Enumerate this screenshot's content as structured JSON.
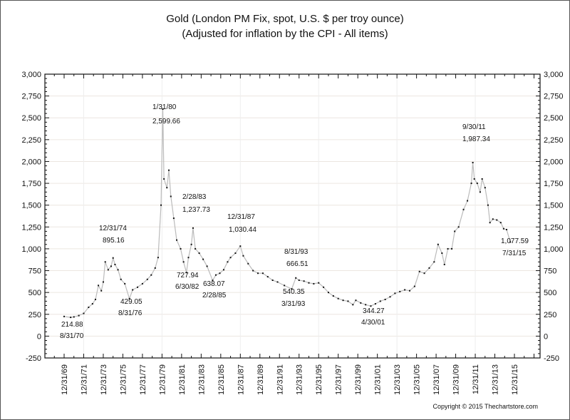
{
  "chart_data": {
    "type": "line",
    "title": "Gold (London PM Fix, spot, U.S. $ per troy ounce)",
    "subtitle": "(Adjusted for inflation by the CPI - All items)",
    "xlabel": "",
    "ylabel": "",
    "ylim": [
      -250,
      3000
    ],
    "xlim": [
      "1968",
      "2018"
    ],
    "grid": true,
    "y_ticks": [
      "-250",
      "0",
      "250",
      "500",
      "750",
      "1,000",
      "1,250",
      "1,500",
      "1,750",
      "2,000",
      "2,250",
      "2,500",
      "2,750",
      "3,000"
    ],
    "y_tick_values": [
      -250,
      0,
      250,
      500,
      750,
      1000,
      1250,
      1500,
      1750,
      2000,
      2250,
      2500,
      2750,
      3000
    ],
    "x_ticks": [
      "12/31/69",
      "12/31/71",
      "12/31/73",
      "12/31/75",
      "12/31/77",
      "12/31/79",
      "12/31/81",
      "12/31/83",
      "12/31/85",
      "12/31/87",
      "12/31/89",
      "12/31/91",
      "12/31/93",
      "12/31/95",
      "12/31/97",
      "12/31/99",
      "12/31/01",
      "12/31/03",
      "12/31/05",
      "12/31/07",
      "12/31/09",
      "12/31/11",
      "12/31/13",
      "12/31/15"
    ],
    "x_tick_years": [
      1970,
      1972,
      1974,
      1976,
      1978,
      1980,
      1982,
      1984,
      1986,
      1988,
      1990,
      1992,
      1994,
      1996,
      1998,
      2000,
      2002,
      2004,
      2006,
      2008,
      2010,
      2012,
      2014,
      2016
    ],
    "line_color": "#bbbbbb",
    "marker_color": "#111111",
    "series": [
      {
        "x": [
          1970.0,
          1970.67,
          1971.0,
          1971.5,
          1972.0,
          1972.5,
          1972.9,
          1973.2,
          1973.5,
          1973.8,
          1974.0,
          1974.2,
          1974.5,
          1974.8,
          1975.0,
          1975.2,
          1975.5,
          1975.8,
          1976.2,
          1976.67,
          1977.0,
          1977.5,
          1978.0,
          1978.5,
          1978.9,
          1979.3,
          1979.6,
          1979.9,
          1980.08,
          1980.2,
          1980.5,
          1980.7,
          1980.9,
          1981.2,
          1981.5,
          1981.9,
          1982.2,
          1982.5,
          1982.7,
          1983.0,
          1983.17,
          1983.4,
          1983.8,
          1984.2,
          1984.6,
          1985.17,
          1985.5,
          1985.9,
          1986.3,
          1986.7,
          1987.0,
          1987.5,
          1988.0,
          1988.3,
          1988.8,
          1989.3,
          1989.8,
          1990.3,
          1990.8,
          1991.3,
          1991.8,
          1992.5,
          1993.25,
          1993.67,
          1994.0,
          1994.5,
          1995.0,
          1995.5,
          1996.0,
          1996.5,
          1997.0,
          1997.5,
          1998.0,
          1998.5,
          1999.0,
          1999.5,
          1999.8,
          2000.3,
          2000.8,
          2001.33,
          2001.8,
          2002.3,
          2002.8,
          2003.3,
          2003.8,
          2004.3,
          2004.8,
          2005.3,
          2005.8,
          2006.3,
          2006.8,
          2007.3,
          2007.8,
          2008.2,
          2008.6,
          2008.85,
          2009.2,
          2009.6,
          2009.9,
          2010.3,
          2010.8,
          2011.2,
          2011.6,
          2011.75,
          2011.9,
          2012.2,
          2012.5,
          2012.7,
          2013.0,
          2013.3,
          2013.5,
          2013.8,
          2014.2,
          2014.6,
          2014.9,
          2015.2,
          2015.58
        ],
        "values": [
          225,
          214.88,
          220,
          235,
          260,
          330,
          370,
          420,
          580,
          520,
          620,
          850,
          760,
          800,
          895.16,
          820,
          760,
          650,
          600,
          429.05,
          530,
          560,
          600,
          650,
          700,
          780,
          900,
          1500,
          2599.66,
          1800,
          1700,
          1900,
          1600,
          1350,
          1100,
          1000,
          850,
          727.94,
          900,
          1050,
          1237.73,
          1000,
          950,
          880,
          800,
          638.07,
          700,
          720,
          760,
          850,
          900,
          950,
          1030.44,
          920,
          830,
          750,
          720,
          720,
          680,
          640,
          620,
          580,
          540.35,
          666.51,
          640,
          630,
          610,
          600,
          610,
          560,
          500,
          460,
          430,
          410,
          400,
          360,
          410,
          380,
          360,
          344.27,
          370,
          400,
          420,
          450,
          490,
          510,
          530,
          520,
          570,
          740,
          720,
          780,
          850,
          1050,
          950,
          820,
          1000,
          1000,
          1200,
          1250,
          1450,
          1550,
          1750,
          1987.34,
          1800,
          1750,
          1650,
          1800,
          1700,
          1500,
          1300,
          1340,
          1330,
          1300,
          1230,
          1220,
          1077.59
        ]
      }
    ],
    "annotations": [
      {
        "date": "1/31/80",
        "value": "2,599.66"
      },
      {
        "date": "12/31/74",
        "value": "895.16"
      },
      {
        "date": "8/31/70",
        "value": "214.88"
      },
      {
        "date": "8/31/76",
        "value": "429.05"
      },
      {
        "date": "2/28/83",
        "value": "1,237.73"
      },
      {
        "date": "6/30/82",
        "value": "727.94"
      },
      {
        "date": "2/28/85",
        "value": "638.07"
      },
      {
        "date": "12/31/87",
        "value": "1,030.44"
      },
      {
        "date": "8/31/93",
        "value": "666.51"
      },
      {
        "date": "3/31/93",
        "value": "540.35"
      },
      {
        "date": "4/30/01",
        "value": "344.27"
      },
      {
        "date": "9/30/11",
        "value": "1,987.34"
      },
      {
        "date": "7/31/15",
        "value": "1,077.59"
      }
    ],
    "copyright": "Copyright © 2015 Thechartstore.com"
  }
}
